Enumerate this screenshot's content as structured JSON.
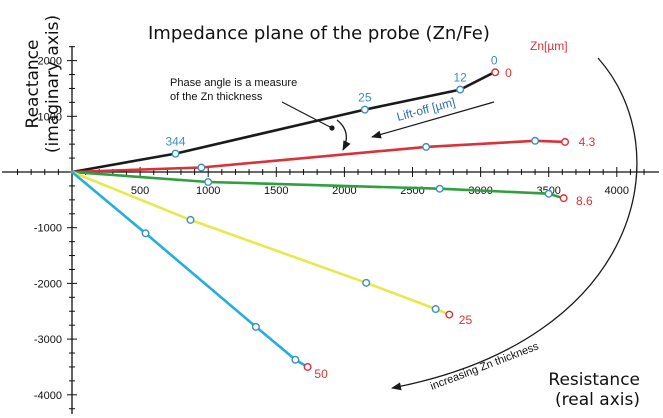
{
  "title": "Impedance plane of the probe (Zn/Fe)",
  "chart_data": {
    "type": "line",
    "title": "Impedance plane of the probe (Zn/Fe)",
    "xlabel": [
      "Resistance",
      "(real axis)"
    ],
    "ylabel": [
      "Reactance",
      "(imaginary axis)"
    ],
    "xlim": [
      0,
      4000
    ],
    "ylim": [
      -4000,
      2000
    ],
    "x_ticks": [
      500,
      1000,
      1500,
      2000,
      2500,
      3000,
      3500,
      4000
    ],
    "y_ticks": [
      2000,
      1000,
      -1000,
      -2000,
      -3000,
      -4000
    ],
    "legend_title": "Zn[µm]",
    "colors": {
      "liftoff": "#1a1a1a",
      "zn0": "#d9323a",
      "zn4_3": "#d9323a",
      "zn8_6": "#2ea040",
      "zn25": "#e8e84a",
      "zn50": "#22aee0",
      "marker_blue": "#3a8fc0",
      "marker_red": "#d9323a"
    },
    "series": [
      {
        "key": "liftoff",
        "color": "#1a1a1a",
        "x": [
          0,
          760,
          2150,
          2850,
          3100
        ],
        "y": [
          0,
          330,
          1120,
          1480,
          1790
        ],
        "point_labels": [
          "",
          "344",
          "25",
          "12",
          "0"
        ],
        "markers": [
          false,
          true,
          true,
          true,
          false
        ]
      },
      {
        "key": "zn4_3",
        "name": "4.3",
        "color": "#d9323a",
        "x": [
          0,
          950,
          2600,
          3400,
          3620
        ],
        "y": [
          0,
          80,
          450,
          560,
          540
        ],
        "markers": [
          false,
          true,
          true,
          true,
          true
        ]
      },
      {
        "key": "zn8_6",
        "name": "8.6",
        "color": "#2ea040",
        "x": [
          0,
          1000,
          2700,
          3500,
          3610
        ],
        "y": [
          0,
          -180,
          -300,
          -390,
          -470
        ],
        "markers": [
          false,
          true,
          true,
          true,
          true
        ]
      },
      {
        "key": "zn25",
        "name": "25",
        "color": "#e8e84a",
        "x": [
          0,
          870,
          2160,
          2670,
          2770
        ],
        "y": [
          0,
          -860,
          -1990,
          -2460,
          -2560
        ],
        "markers": [
          false,
          true,
          true,
          true,
          true
        ]
      },
      {
        "key": "zn50",
        "name": "50",
        "color": "#22aee0",
        "x": [
          0,
          540,
          1350,
          1640,
          1730
        ],
        "y": [
          0,
          -1100,
          -2780,
          -3370,
          -3500
        ],
        "markers": [
          false,
          true,
          true,
          true,
          true
        ]
      }
    ],
    "end_labels": [
      {
        "text": "0",
        "x": 3180,
        "y": 1780
      },
      {
        "text": "4.3",
        "x": 3720,
        "y": 540
      },
      {
        "text": "8.6",
        "x": 3700,
        "y": -520
      },
      {
        "text": "25",
        "x": 2840,
        "y": -2660
      },
      {
        "text": "50",
        "x": 1780,
        "y": -3630
      }
    ],
    "annotations": {
      "phase_angle": [
        "Phase angle is a measure",
        "of the Zn thickness"
      ],
      "liftoff": "Lift-off [µm]",
      "increasing": "increasing Zn thickness"
    }
  }
}
